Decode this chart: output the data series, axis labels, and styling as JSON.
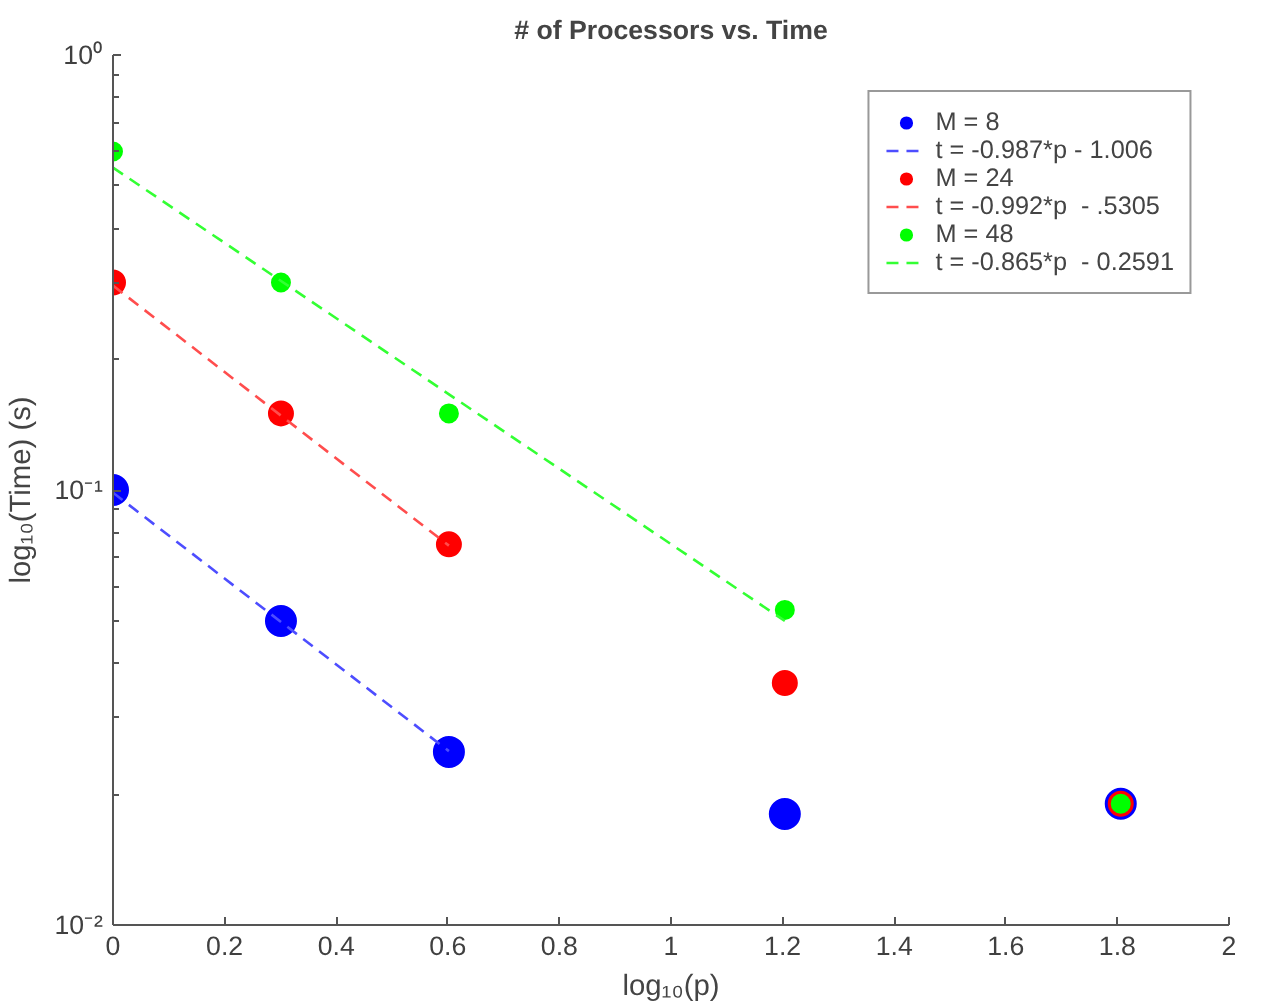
{
  "chart_data": {
    "type": "scatter",
    "title": "# of Processors vs. Time",
    "xlabel": "log₁₀(p)",
    "ylabel": "log₁₀(Time) (s)",
    "log": "y",
    "grid": false,
    "legend": "top right",
    "marker": "circle",
    "xlim": [
      0,
      2
    ],
    "xticks": [
      0,
      0.2,
      0.4,
      0.6,
      0.8,
      1,
      1.2,
      1.4,
      1.6,
      1.8,
      2
    ],
    "ylim": [
      0.01,
      1
    ],
    "yticks": [
      {
        "value": 0.01,
        "label": "10⁻²"
      },
      {
        "value": 0.1,
        "label": "10⁻¹"
      },
      {
        "value": 1,
        "label": "10⁰"
      }
    ],
    "series": [
      {
        "name": "M = 8",
        "color": "#0000ff",
        "x": [
          0,
          0.301,
          0.602,
          1.204,
          1.806
        ],
        "values": [
          0.1,
          0.05,
          0.025,
          0.018,
          0.019
        ]
      },
      {
        "name": "t = -0.987*p - 1.006",
        "type": "line",
        "line_style": "dashed",
        "marker": "none",
        "color": "#4d4dff",
        "x": [
          0,
          0.602
        ],
        "values": [
          0.0986,
          0.0251
        ]
      },
      {
        "name": "M = 24",
        "color": "#ff0000",
        "x": [
          0,
          0.301,
          0.602,
          1.204,
          1.806
        ],
        "values": [
          0.3,
          0.15,
          0.075,
          0.036,
          0.019
        ]
      },
      {
        "name": "t = -0.992*p  - .5305",
        "type": "line",
        "line_style": "dashed",
        "marker": "none",
        "color": "#ff4d4d",
        "x": [
          0,
          0.602
        ],
        "values": [
          0.295,
          0.0745
        ]
      },
      {
        "name": "M = 48",
        "color": "#00ff00",
        "x": [
          0,
          0.301,
          0.602,
          1.204,
          1.806
        ],
        "values": [
          0.6,
          0.3,
          0.15,
          0.053,
          0.019
        ]
      },
      {
        "name": "t = -0.865*p  - 0.2591",
        "type": "line",
        "line_style": "dashed",
        "marker": "none",
        "color": "#33ff33",
        "x": [
          0,
          1.204
        ],
        "values": [
          0.551,
          0.05
        ]
      }
    ]
  }
}
